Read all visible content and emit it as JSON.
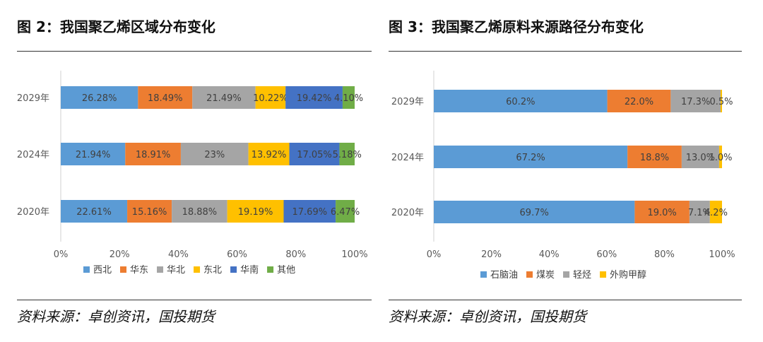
{
  "chart_data": [
    {
      "type": "bar",
      "orientation": "horizontal",
      "stacked": true,
      "title": "图 2：我国聚乙烯区域分布变化",
      "source": "资料来源：卓创资讯，国投期货",
      "categories": [
        "2029年",
        "2024年",
        "2020年"
      ],
      "series": [
        {
          "name": "西北",
          "color": "#5B9BD5",
          "values": [
            26.28,
            21.94,
            22.61
          ],
          "labels": [
            "26.28%",
            "21.94%",
            "22.61%"
          ]
        },
        {
          "name": "华东",
          "color": "#ED7D31",
          "values": [
            18.49,
            18.91,
            15.16
          ],
          "labels": [
            "18.49%",
            "18.91%",
            "15.16%"
          ]
        },
        {
          "name": "华北",
          "color": "#A5A5A5",
          "values": [
            21.49,
            23.0,
            18.88
          ],
          "labels": [
            "21.49%",
            "23%",
            "18.88%"
          ]
        },
        {
          "name": "东北",
          "color": "#FFC000",
          "values": [
            10.22,
            13.92,
            19.19
          ],
          "labels": [
            "10.22%",
            "13.92%",
            "19.19%"
          ]
        },
        {
          "name": "华南",
          "color": "#4472C4",
          "values": [
            19.42,
            17.05,
            17.69
          ],
          "labels": [
            "19.42%",
            "17.05%",
            "17.69%"
          ]
        },
        {
          "name": "其他",
          "color": "#70AD47",
          "values": [
            4.1,
            5.18,
            6.47
          ],
          "labels": [
            "4.10%",
            "5.18%",
            "6.47%"
          ]
        }
      ],
      "xlim": [
        0,
        100
      ],
      "xticks": [
        "0%",
        "20%",
        "40%",
        "60%",
        "80%",
        "100%"
      ],
      "legend": "bottom",
      "grid": false
    },
    {
      "type": "bar",
      "orientation": "horizontal",
      "stacked": true,
      "title": "图 3：我国聚乙烯原料来源路径分布变化",
      "source": "资料来源：卓创资讯，国投期货",
      "categories": [
        "2029年",
        "2024年",
        "2020年"
      ],
      "series": [
        {
          "name": "石脑油",
          "color": "#5B9BD5",
          "values": [
            60.2,
            67.2,
            69.7
          ],
          "labels": [
            "60.2%",
            "67.2%",
            "69.7%"
          ]
        },
        {
          "name": "煤炭",
          "color": "#ED7D31",
          "values": [
            22.0,
            18.8,
            19.0
          ],
          "labels": [
            "22.0%",
            "18.8%",
            "19.0%"
          ]
        },
        {
          "name": "轻烃",
          "color": "#A5A5A5",
          "values": [
            17.3,
            13.0,
            7.1
          ],
          "labels": [
            "17.3%",
            "13.0%",
            "7.1%"
          ]
        },
        {
          "name": "外购甲醇",
          "color": "#FFC000",
          "values": [
            0.5,
            1.0,
            4.2
          ],
          "labels": [
            "0.5%",
            "1.0%",
            "4.2%"
          ]
        }
      ],
      "xlim": [
        0,
        100
      ],
      "xticks": [
        "0%",
        "20%",
        "40%",
        "60%",
        "80%",
        "100%"
      ],
      "legend": "bottom",
      "grid": false
    }
  ]
}
